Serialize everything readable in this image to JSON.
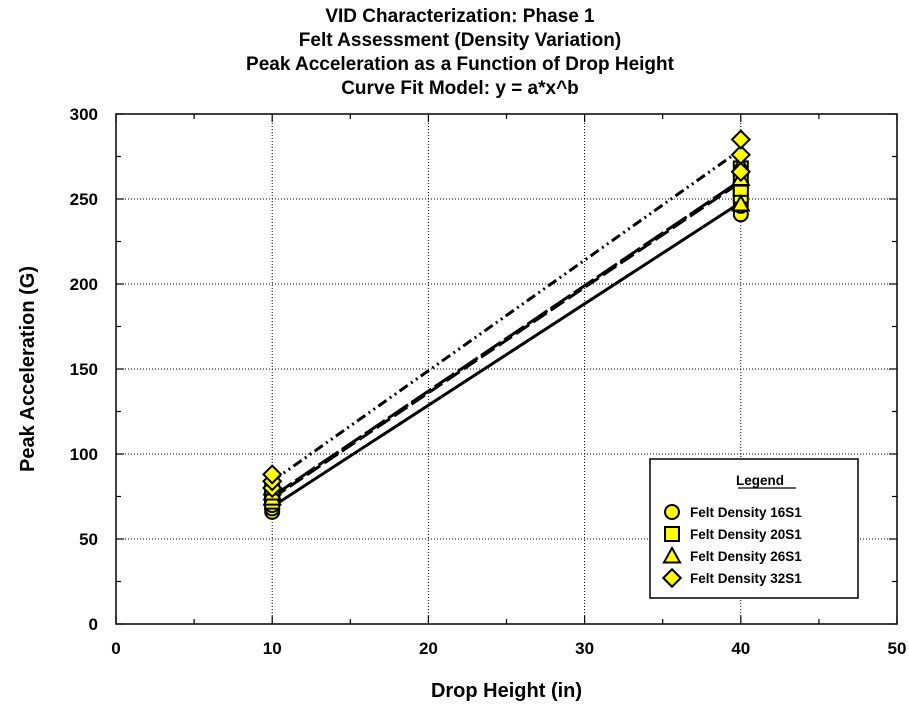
{
  "chart_data": {
    "type": "scatter",
    "title": [
      "VID Characterization:  Phase 1",
      "Felt Assessment (Density Variation)",
      "Peak Acceleration as a Function of Drop Height",
      "Curve Fit Model:  y = a*x^b"
    ],
    "xlabel": "Drop Height  (in)",
    "ylabel": "Peak Acceleration  (G)",
    "xlim": [
      0,
      50
    ],
    "ylim": [
      0,
      300
    ],
    "x_ticks": [
      0,
      10,
      20,
      30,
      40,
      50
    ],
    "y_ticks": [
      0,
      50,
      100,
      150,
      200,
      250,
      300
    ],
    "grid": true,
    "legend": {
      "title": "Legend",
      "placement": "bottom-right"
    },
    "series": [
      {
        "name": "Felt Density 16S1",
        "marker": "circle",
        "line_style": "solid",
        "points": [
          [
            10,
            66
          ],
          [
            10,
            68
          ],
          [
            10,
            70
          ],
          [
            40,
            241
          ],
          [
            40,
            246
          ],
          [
            40,
            252
          ],
          [
            40,
            258
          ]
        ],
        "fit": [
          [
            10,
            69
          ],
          [
            40,
            248
          ]
        ]
      },
      {
        "name": "Felt Density 20S1",
        "marker": "square",
        "line_style": "dash",
        "points": [
          [
            10,
            72
          ],
          [
            10,
            75
          ],
          [
            10,
            78
          ],
          [
            40,
            252
          ],
          [
            40,
            256
          ],
          [
            40,
            262
          ],
          [
            40,
            268
          ]
        ],
        "fit": [
          [
            10,
            74
          ],
          [
            40,
            260
          ]
        ]
      },
      {
        "name": "Felt Density 26S1",
        "marker": "triangle",
        "line_style": "longdash",
        "points": [
          [
            10,
            74
          ],
          [
            10,
            77
          ],
          [
            10,
            80
          ],
          [
            40,
            247
          ],
          [
            40,
            262
          ],
          [
            40,
            270
          ]
        ],
        "fit": [
          [
            10,
            75
          ],
          [
            40,
            261
          ]
        ]
      },
      {
        "name": "Felt Density 32S1",
        "marker": "diamond",
        "line_style": "dashdotdot",
        "points": [
          [
            10,
            80
          ],
          [
            10,
            84
          ],
          [
            10,
            88
          ],
          [
            40,
            266
          ],
          [
            40,
            276
          ],
          [
            40,
            285
          ]
        ],
        "fit": [
          [
            10,
            84
          ],
          [
            40,
            279
          ]
        ]
      }
    ],
    "colors": {
      "marker_fill": "#ffff00",
      "marker_stroke": "#000000",
      "line": "#000000",
      "grid": "#000000"
    }
  }
}
